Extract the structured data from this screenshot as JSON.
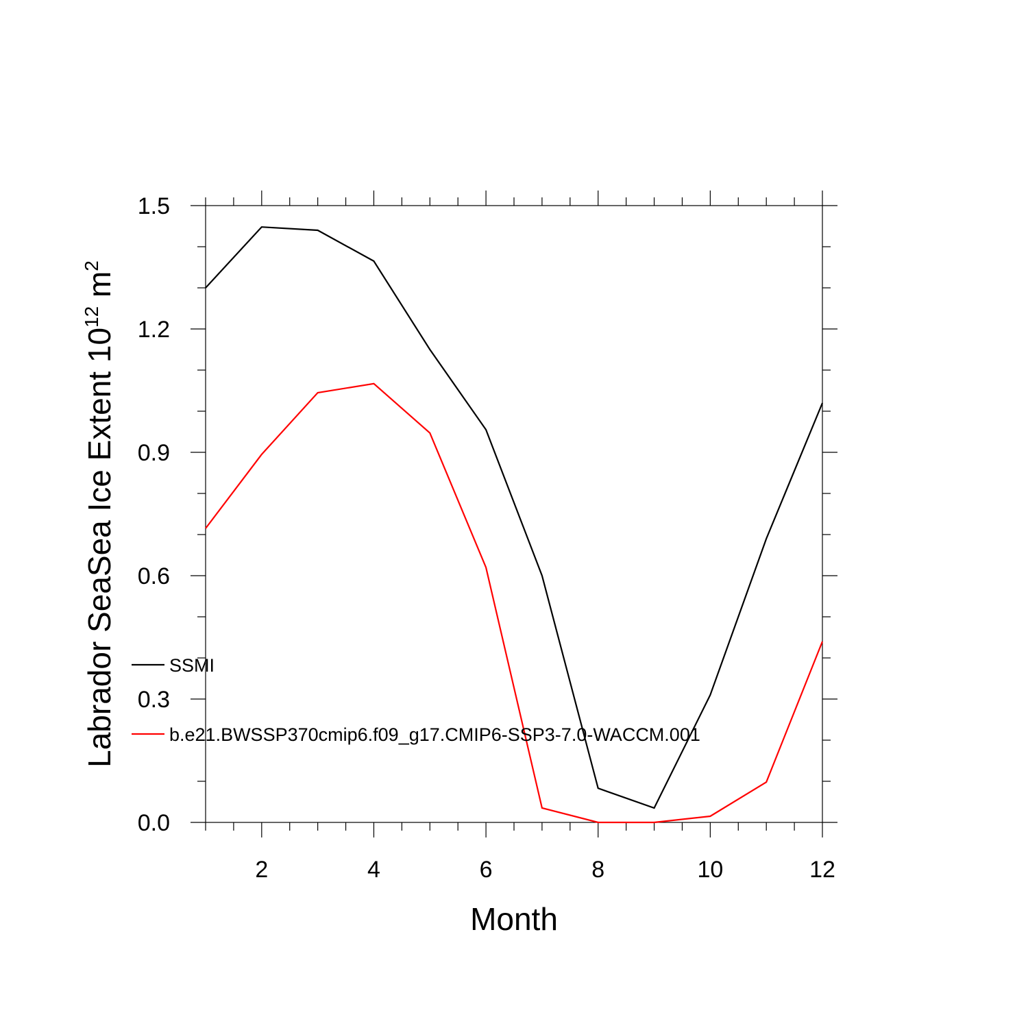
{
  "chart_data": {
    "type": "line",
    "xlabel": "Month",
    "ylabel_main": "Labrador SeaSea Ice Extent 10",
    "ylabel_exp": "12",
    "ylabel_unit": " m",
    "ylabel_unit_exp": "2",
    "xlim": [
      1,
      12
    ],
    "ylim": [
      0,
      1.5
    ],
    "x_ticks": [
      2,
      4,
      6,
      8,
      10,
      12
    ],
    "x_tick_labels": [
      "2",
      "4",
      "6",
      "8",
      "10",
      "12"
    ],
    "y_ticks": [
      0,
      0.3,
      0.6,
      0.9,
      1.2,
      1.5
    ],
    "y_tick_labels": [
      "0.0",
      "0.3",
      "0.6",
      "0.9",
      "1.2",
      "1.5"
    ],
    "legend_placement": "left",
    "x": [
      1,
      2,
      3,
      4,
      5,
      6,
      7,
      8,
      9,
      10,
      11,
      12
    ],
    "series": [
      {
        "name": "SSMI",
        "color": "#000000",
        "values": [
          1.3,
          1.448,
          1.44,
          1.365,
          1.15,
          0.955,
          0.6,
          0.083,
          0.035,
          0.31,
          0.69,
          1.02
        ]
      },
      {
        "name": "b.e21.BWSSP370cmip6.f09_g17.CMIP6-SSP3-7.0-WACCM.001",
        "color": "#ff0000",
        "values": [
          0.715,
          0.895,
          1.045,
          1.067,
          0.947,
          0.62,
          0.035,
          0.0,
          0.0,
          0.015,
          0.098,
          0.44
        ]
      }
    ]
  }
}
